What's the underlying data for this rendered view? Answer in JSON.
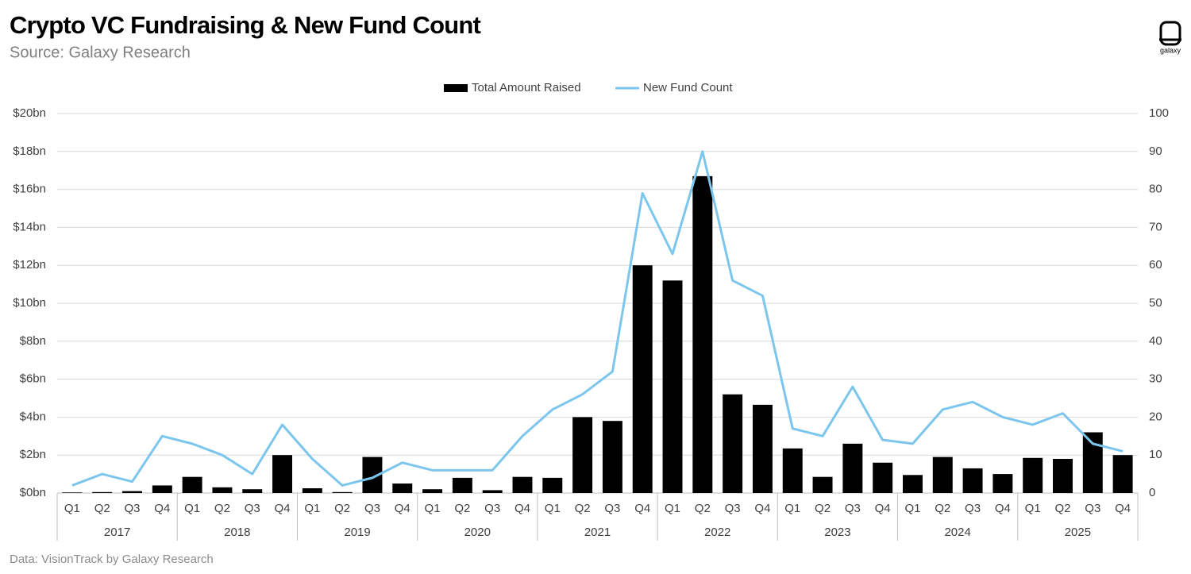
{
  "chart_data": {
    "type": "combo",
    "title": "Crypto VC Fundraising & New Fund Count",
    "subtitle": "Source: Galaxy Research",
    "footer": "Data: VisionTrack by Galaxy Research",
    "logo_text": "galaxy",
    "categories": [
      "Q1",
      "Q2",
      "Q3",
      "Q4",
      "Q1",
      "Q2",
      "Q3",
      "Q4",
      "Q1",
      "Q2",
      "Q3",
      "Q4",
      "Q1",
      "Q2",
      "Q3",
      "Q4",
      "Q1",
      "Q2",
      "Q3",
      "Q4",
      "Q1",
      "Q2",
      "Q3",
      "Q4",
      "Q1",
      "Q2",
      "Q3",
      "Q4",
      "Q1",
      "Q2",
      "Q3",
      "Q4",
      "Q1",
      "Q2",
      "Q3",
      "Q4"
    ],
    "groups": [
      "2017",
      "2018",
      "2019",
      "2020",
      "2021",
      "2022",
      "2023",
      "2024",
      "2025"
    ],
    "series": [
      {
        "name": "Total Amount Raised",
        "type": "bar",
        "color": "#000000",
        "values": [
          0.03,
          0.05,
          0.1,
          0.4,
          0.85,
          0.3,
          0.2,
          2.0,
          0.25,
          0.05,
          1.9,
          0.5,
          0.2,
          0.8,
          0.15,
          0.85,
          0.8,
          4.0,
          3.8,
          12.0,
          11.2,
          16.7,
          5.2,
          4.65,
          2.35,
          0.85,
          2.6,
          1.6,
          0.95,
          1.9,
          1.3,
          1.0,
          1.85,
          1.8,
          3.2,
          2.0
        ]
      },
      {
        "name": "New Fund Count",
        "type": "line",
        "color": "#7cc6ee",
        "axis": "y2",
        "values": [
          2,
          5,
          3,
          15,
          13,
          10,
          5,
          18,
          9,
          2,
          4,
          8,
          6,
          6,
          6,
          15,
          22,
          26,
          32,
          79,
          63,
          90,
          56,
          52,
          17,
          15,
          28,
          14,
          13,
          22,
          24,
          20,
          18,
          21,
          13,
          11
        ]
      }
    ],
    "ylim": [
      0,
      20
    ],
    "yticks": [
      {
        "value": 0,
        "label": "$0bn"
      },
      {
        "value": 2,
        "label": "$2bn"
      },
      {
        "value": 4,
        "label": "$4bn"
      },
      {
        "value": 6,
        "label": "$6bn"
      },
      {
        "value": 8,
        "label": "$8bn"
      },
      {
        "value": 10,
        "label": "$10bn"
      },
      {
        "value": 12,
        "label": "$12bn"
      },
      {
        "value": 14,
        "label": "$14bn"
      },
      {
        "value": 16,
        "label": "$16bn"
      },
      {
        "value": 18,
        "label": "$18bn"
      },
      {
        "value": 20,
        "label": "$20bn"
      }
    ],
    "y2lim": [
      0,
      100
    ],
    "y2ticks": [
      0,
      10,
      20,
      30,
      40,
      50,
      60,
      70,
      80,
      90,
      100
    ],
    "grid": true,
    "legend": "top"
  }
}
